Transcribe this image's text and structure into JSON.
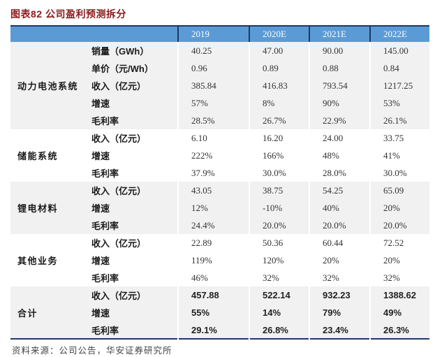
{
  "figure": {
    "title": "图表82 公司盈利预测拆分",
    "source": "资料来源：公司公告，华安证券研究所"
  },
  "colors": {
    "header_bg": "#5B9BD5",
    "header_text": "#FFFFFF",
    "header_divider": "#1F3864",
    "table_border": "#1F3864",
    "band_shaded": "#F1F1F1",
    "band_plain": "#FFFFFF",
    "title_color": "#8B1A1A"
  },
  "chart_data": {
    "type": "table",
    "title": "图表82 公司盈利预测拆分",
    "columns": [
      "2019",
      "2020E",
      "2021E",
      "2022E"
    ],
    "sections": [
      {
        "name": "动力电池系统",
        "shaded": true,
        "bold": false,
        "rows": [
          {
            "label": "销量（GWh）",
            "values": [
              "40.25",
              "47.00",
              "90.00",
              "145.00"
            ]
          },
          {
            "label": "单价（元/Wh）",
            "values": [
              "0.96",
              "0.89",
              "0.88",
              "0.84"
            ]
          },
          {
            "label": "收入（亿元）",
            "values": [
              "385.84",
              "416.83",
              "793.54",
              "1217.25"
            ]
          },
          {
            "label": "增速",
            "values": [
              "57%",
              "8%",
              "90%",
              "53%"
            ]
          },
          {
            "label": "毛利率",
            "values": [
              "28.5%",
              "26.7%",
              "22.9%",
              "26.1%"
            ]
          }
        ]
      },
      {
        "name": "储能系统",
        "shaded": false,
        "bold": false,
        "rows": [
          {
            "label": "收入（亿元）",
            "values": [
              "6.10",
              "16.20",
              "24.00",
              "33.75"
            ]
          },
          {
            "label": "增速",
            "values": [
              "222%",
              "166%",
              "48%",
              "41%"
            ]
          },
          {
            "label": "毛利率",
            "values": [
              "37.9%",
              "30.0%",
              "28.0%",
              "30.0%"
            ]
          }
        ]
      },
      {
        "name": "锂电材料",
        "shaded": true,
        "bold": false,
        "rows": [
          {
            "label": "收入（亿元）",
            "values": [
              "43.05",
              "38.75",
              "54.25",
              "65.09"
            ]
          },
          {
            "label": "增速",
            "values": [
              "12%",
              "-10%",
              "40%",
              "20%"
            ]
          },
          {
            "label": "毛利率",
            "values": [
              "24.4%",
              "20.0%",
              "20.0%",
              "20.0%"
            ]
          }
        ]
      },
      {
        "name": "其他业务",
        "shaded": false,
        "bold": false,
        "rows": [
          {
            "label": "收入（亿元）",
            "values": [
              "22.89",
              "50.36",
              "60.44",
              "72.52"
            ]
          },
          {
            "label": "增速",
            "values": [
              "119%",
              "120%",
              "20%",
              "20%"
            ]
          },
          {
            "label": "毛利率",
            "values": [
              "46%",
              "32%",
              "32%",
              "32%"
            ]
          }
        ]
      },
      {
        "name": "合计",
        "shaded": true,
        "bold": true,
        "rows": [
          {
            "label": "收入（亿元）",
            "values": [
              "457.88",
              "522.14",
              "932.23",
              "1388.62"
            ]
          },
          {
            "label": "增速",
            "values": [
              "55%",
              "14%",
              "79%",
              "49%"
            ]
          },
          {
            "label": "毛利率",
            "values": [
              "29.1%",
              "26.8%",
              "23.4%",
              "26.3%"
            ]
          }
        ]
      }
    ]
  }
}
